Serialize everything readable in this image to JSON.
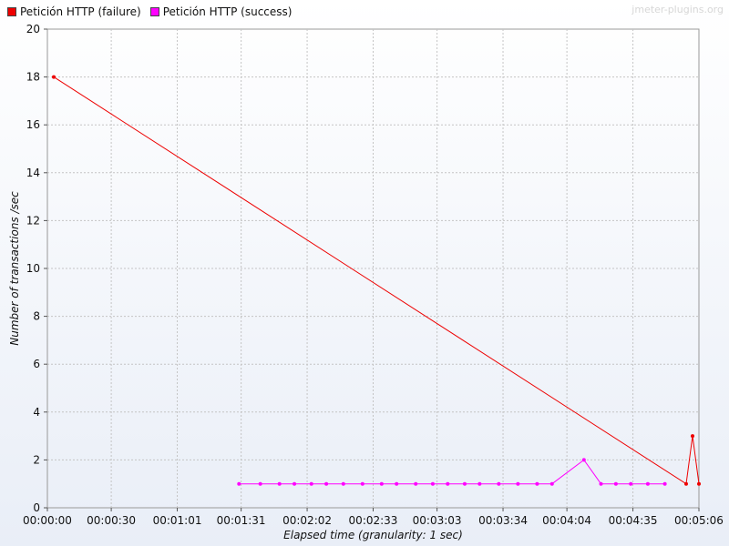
{
  "watermark": "jmeter-plugins.org",
  "chart_data": {
    "type": "line",
    "xlabel": "Elapsed time (granularity: 1 sec)",
    "ylabel": "Number of transactions /sec",
    "xlim": [
      "00:00:00",
      "00:05:06"
    ],
    "ylim": [
      0,
      20
    ],
    "yticks": [
      0,
      2,
      4,
      6,
      8,
      10,
      12,
      14,
      16,
      18,
      20
    ],
    "xticks": [
      "00:00:00",
      "00:00:30",
      "00:01:01",
      "00:01:31",
      "00:02:02",
      "00:02:33",
      "00:03:03",
      "00:03:34",
      "00:04:04",
      "00:04:35",
      "00:05:06"
    ],
    "grid": true,
    "legend_position": "top-left",
    "series": [
      {
        "name": "Petición HTTP (failure)",
        "color": "#ee0000",
        "points": [
          {
            "x": "00:00:03",
            "y": 18
          },
          {
            "x": "00:05:00",
            "y": 1
          },
          {
            "x": "00:05:03",
            "y": 3
          },
          {
            "x": "00:05:06",
            "y": 1
          }
        ]
      },
      {
        "name": "Petición HTTP (success)",
        "color": "#ff00ff",
        "points": [
          {
            "x": "00:01:30",
            "y": 1
          },
          {
            "x": "00:01:40",
            "y": 1
          },
          {
            "x": "00:01:49",
            "y": 1
          },
          {
            "x": "00:01:56",
            "y": 1
          },
          {
            "x": "00:02:04",
            "y": 1
          },
          {
            "x": "00:02:11",
            "y": 1
          },
          {
            "x": "00:02:19",
            "y": 1
          },
          {
            "x": "00:02:28",
            "y": 1
          },
          {
            "x": "00:02:37",
            "y": 1
          },
          {
            "x": "00:02:44",
            "y": 1
          },
          {
            "x": "00:02:53",
            "y": 1
          },
          {
            "x": "00:03:01",
            "y": 1
          },
          {
            "x": "00:03:08",
            "y": 1
          },
          {
            "x": "00:03:16",
            "y": 1
          },
          {
            "x": "00:03:23",
            "y": 1
          },
          {
            "x": "00:03:32",
            "y": 1
          },
          {
            "x": "00:03:41",
            "y": 1
          },
          {
            "x": "00:03:50",
            "y": 1
          },
          {
            "x": "00:03:57",
            "y": 1
          },
          {
            "x": "00:04:12",
            "y": 2
          },
          {
            "x": "00:04:20",
            "y": 1
          },
          {
            "x": "00:04:27",
            "y": 1
          },
          {
            "x": "00:04:34",
            "y": 1
          },
          {
            "x": "00:04:42",
            "y": 1
          },
          {
            "x": "00:04:50",
            "y": 1
          }
        ]
      }
    ]
  }
}
